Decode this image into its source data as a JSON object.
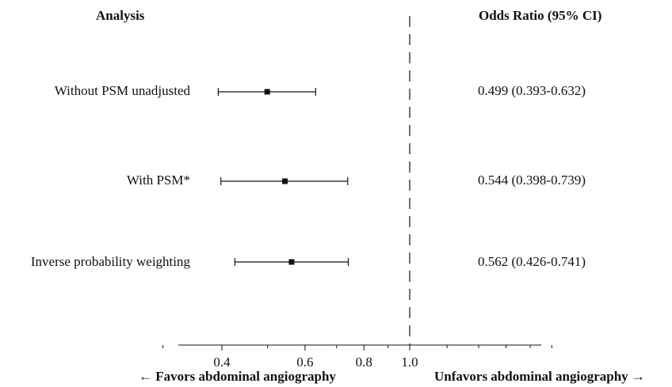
{
  "header": {
    "analysis_label": "Analysis",
    "or_label": "Odds Ratio (95% CI)"
  },
  "rows": [
    {
      "label": "Without PSM unadjusted",
      "ci_text": "0.499 (0.393-0.632)"
    },
    {
      "label": "With PSM*",
      "ci_text": "0.544 (0.398-0.739)"
    },
    {
      "label": "Inverse probability weighting",
      "ci_text": "0.562 (0.426-0.741)"
    }
  ],
  "footer": {
    "favors_left": "← Favors abdominal angiography",
    "favors_right": "Unfavors abdominal angiography →"
  },
  "chart_data": {
    "type": "forest",
    "x_scale": "log",
    "reference_line": 1.0,
    "xlim": [
      0.3,
      2.0
    ],
    "xtick_labels": [
      "0.4",
      "0.6",
      "0.8",
      "1.0"
    ],
    "xticks": [
      0.4,
      0.6,
      0.8,
      1.0
    ],
    "minor_ticks": [
      0.3,
      0.5,
      0.7,
      0.9,
      1.2,
      1.4,
      1.6,
      1.8,
      2.0
    ],
    "series": [
      {
        "estimate": 0.499,
        "lower": 0.393,
        "upper": 0.632
      },
      {
        "estimate": 0.544,
        "lower": 0.398,
        "upper": 0.739
      },
      {
        "estimate": 0.562,
        "lower": 0.426,
        "upper": 0.741
      }
    ],
    "colors": {
      "ink": "#111111"
    }
  }
}
